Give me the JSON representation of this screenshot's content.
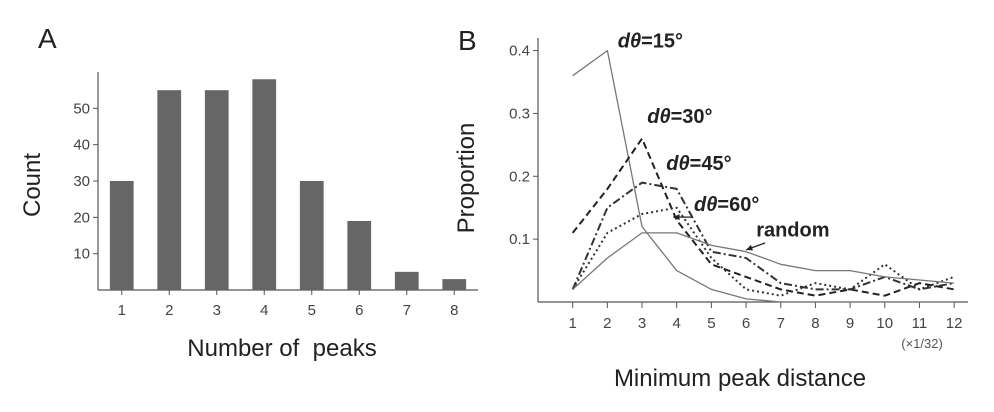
{
  "panels": {
    "a": {
      "letter": "A"
    },
    "b": {
      "letter": "B"
    }
  },
  "chart_data": [
    {
      "type": "bar",
      "categories": [
        "1",
        "2",
        "3",
        "4",
        "5",
        "6",
        "7",
        "8"
      ],
      "values": [
        30,
        55,
        55,
        58,
        30,
        19,
        5,
        3
      ],
      "xlabel": "Number of  peaks",
      "ylabel": "Count",
      "ylim": [
        0,
        60
      ],
      "yticks": [
        10,
        20,
        30,
        40,
        50
      ],
      "bar_color": "#666666",
      "grid": false
    },
    {
      "type": "line",
      "x": [
        1,
        2,
        3,
        4,
        5,
        6,
        7,
        8,
        9,
        10,
        11,
        12
      ],
      "xlabel": "Minimum peak distance",
      "x_unit_note": "(×1/32)",
      "ylabel": "Proportion",
      "ylim": [
        0,
        0.42
      ],
      "yticks": [
        0.1,
        0.2,
        0.3,
        0.4
      ],
      "grid": false,
      "series": [
        {
          "name": "dθ=15°",
          "label_prefix": "d",
          "label_symbol": "θ",
          "label_suffix": "=15°",
          "style": "solid",
          "values": [
            0.36,
            0.4,
            0.12,
            0.05,
            0.02,
            0.005,
            0.0,
            0.0,
            0.0,
            0.0,
            0.0,
            0.0
          ]
        },
        {
          "name": "dθ=30°",
          "label_prefix": "d",
          "label_symbol": "θ",
          "label_suffix": "=30°",
          "style": "dash",
          "values": [
            0.11,
            0.18,
            0.26,
            0.13,
            0.06,
            0.04,
            0.02,
            0.01,
            0.02,
            0.01,
            0.03,
            0.02
          ]
        },
        {
          "name": "dθ=45°",
          "label_prefix": "d",
          "label_symbol": "θ",
          "label_suffix": "=45°",
          "style": "dashdot",
          "values": [
            0.02,
            0.15,
            0.19,
            0.18,
            0.08,
            0.07,
            0.03,
            0.02,
            0.02,
            0.04,
            0.02,
            0.03
          ]
        },
        {
          "name": "dθ=60°",
          "label_prefix": "d",
          "label_symbol": "θ",
          "label_suffix": "=60°",
          "style": "dot",
          "values": [
            0.02,
            0.11,
            0.14,
            0.15,
            0.07,
            0.02,
            0.01,
            0.03,
            0.02,
            0.06,
            0.02,
            0.04
          ]
        },
        {
          "name": "random",
          "label": "random",
          "style": "solid",
          "values": [
            0.02,
            0.07,
            0.11,
            0.11,
            0.09,
            0.08,
            0.06,
            0.05,
            0.05,
            0.04,
            0.035,
            0.03
          ]
        }
      ]
    }
  ]
}
